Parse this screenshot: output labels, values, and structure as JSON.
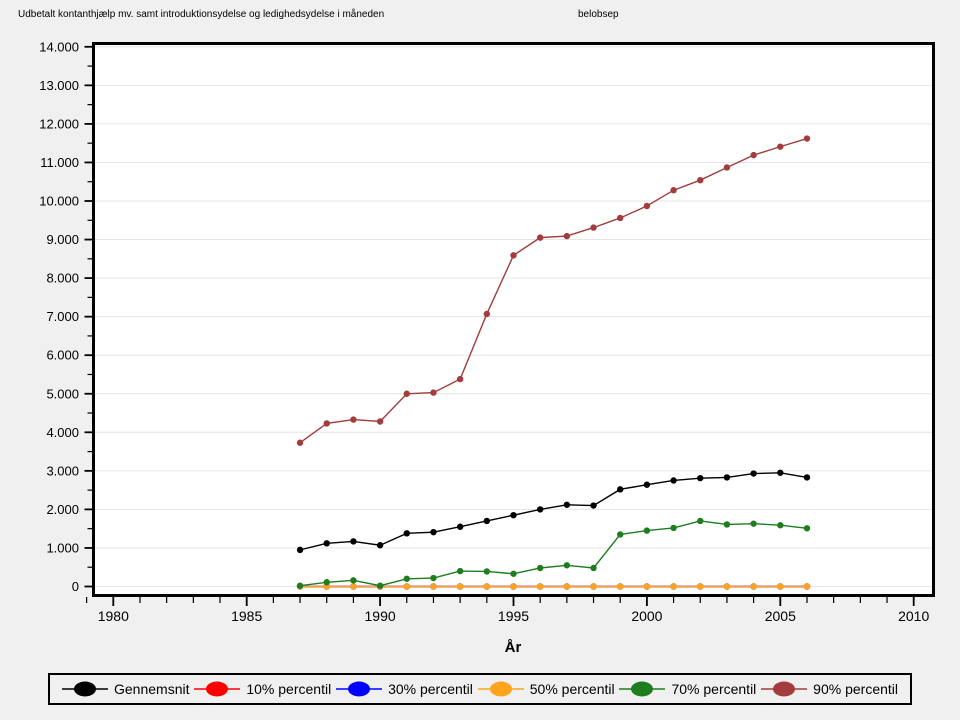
{
  "header": {
    "title": "Udbetalt kontanthjælp mv. samt introduktionsydelse og ledighedsydelse i måneden",
    "variable": "belobsep"
  },
  "chart_data": {
    "type": "line",
    "title": "Udbetalt kontanthjælp mv. samt introduktionsydelse og ledighedsydelse i måneden",
    "subtitle": "belobsep",
    "xlabel": "År",
    "ylabel": "",
    "xlim": [
      1979.2,
      2010.8
    ],
    "ylim": [
      0,
      14000
    ],
    "grid": "horizontal-major",
    "legend_position": "bottom",
    "x_tick_values": [
      1980,
      1985,
      1990,
      1995,
      2000,
      2005,
      2010
    ],
    "x_tick_labels": [
      "1980",
      "1985",
      "1990",
      "1995",
      "2000",
      "2005",
      "2010"
    ],
    "x_minor_tick_step": 1,
    "y_tick_values": [
      0,
      1000,
      2000,
      3000,
      4000,
      5000,
      6000,
      7000,
      8000,
      9000,
      10000,
      11000,
      12000,
      13000,
      14000
    ],
    "y_tick_labels": [
      "0",
      "1.000",
      "2.000",
      "3.000",
      "4.000",
      "5.000",
      "6.000",
      "7.000",
      "8.000",
      "9.000",
      "10.000",
      "11.000",
      "12.000",
      "13.000",
      "14.000"
    ],
    "y_minor_tick_step": 500,
    "years": [
      1987,
      1988,
      1989,
      1990,
      1991,
      1992,
      1993,
      1994,
      1995,
      1996,
      1997,
      1998,
      1999,
      2000,
      2001,
      2002,
      2003,
      2004,
      2005,
      2006
    ],
    "series": [
      {
        "name": "Gennemsnit",
        "color": "#000000",
        "values": [
          950,
          1120,
          1170,
          1070,
          1380,
          1410,
          1550,
          1700,
          1850,
          2000,
          2120,
          2100,
          2520,
          2640,
          2750,
          2810,
          2830,
          2930,
          2950,
          2830
        ]
      },
      {
        "name": "10% percentil",
        "color": "#ff0000",
        "values": [
          0,
          0,
          0,
          0,
          0,
          0,
          0,
          0,
          0,
          0,
          0,
          0,
          0,
          0,
          0,
          0,
          0,
          0,
          0,
          0
        ]
      },
      {
        "name": "30% percentil",
        "color": "#0000ff",
        "values": [
          0,
          0,
          0,
          0,
          0,
          0,
          0,
          0,
          0,
          0,
          0,
          0,
          0,
          0,
          0,
          0,
          0,
          0,
          0,
          0
        ]
      },
      {
        "name": "50% percentil",
        "color": "#ffa41c",
        "values": [
          0,
          0,
          0,
          0,
          0,
          0,
          0,
          0,
          0,
          0,
          0,
          0,
          0,
          0,
          0,
          0,
          0,
          0,
          0,
          0
        ]
      },
      {
        "name": "70% percentil",
        "color": "#1e7d1e",
        "values": [
          20,
          110,
          160,
          20,
          200,
          220,
          400,
          390,
          330,
          480,
          550,
          480,
          1350,
          1450,
          1520,
          1700,
          1610,
          1630,
          1590,
          1510
        ]
      },
      {
        "name": "90% percentil",
        "color": "#a33c3c",
        "values": [
          3730,
          4230,
          4330,
          4280,
          5000,
          5030,
          5380,
          7070,
          8590,
          9050,
          9090,
          9310,
          9560,
          9870,
          10280,
          10540,
          10870,
          11190,
          11410,
          11620
        ]
      }
    ]
  }
}
